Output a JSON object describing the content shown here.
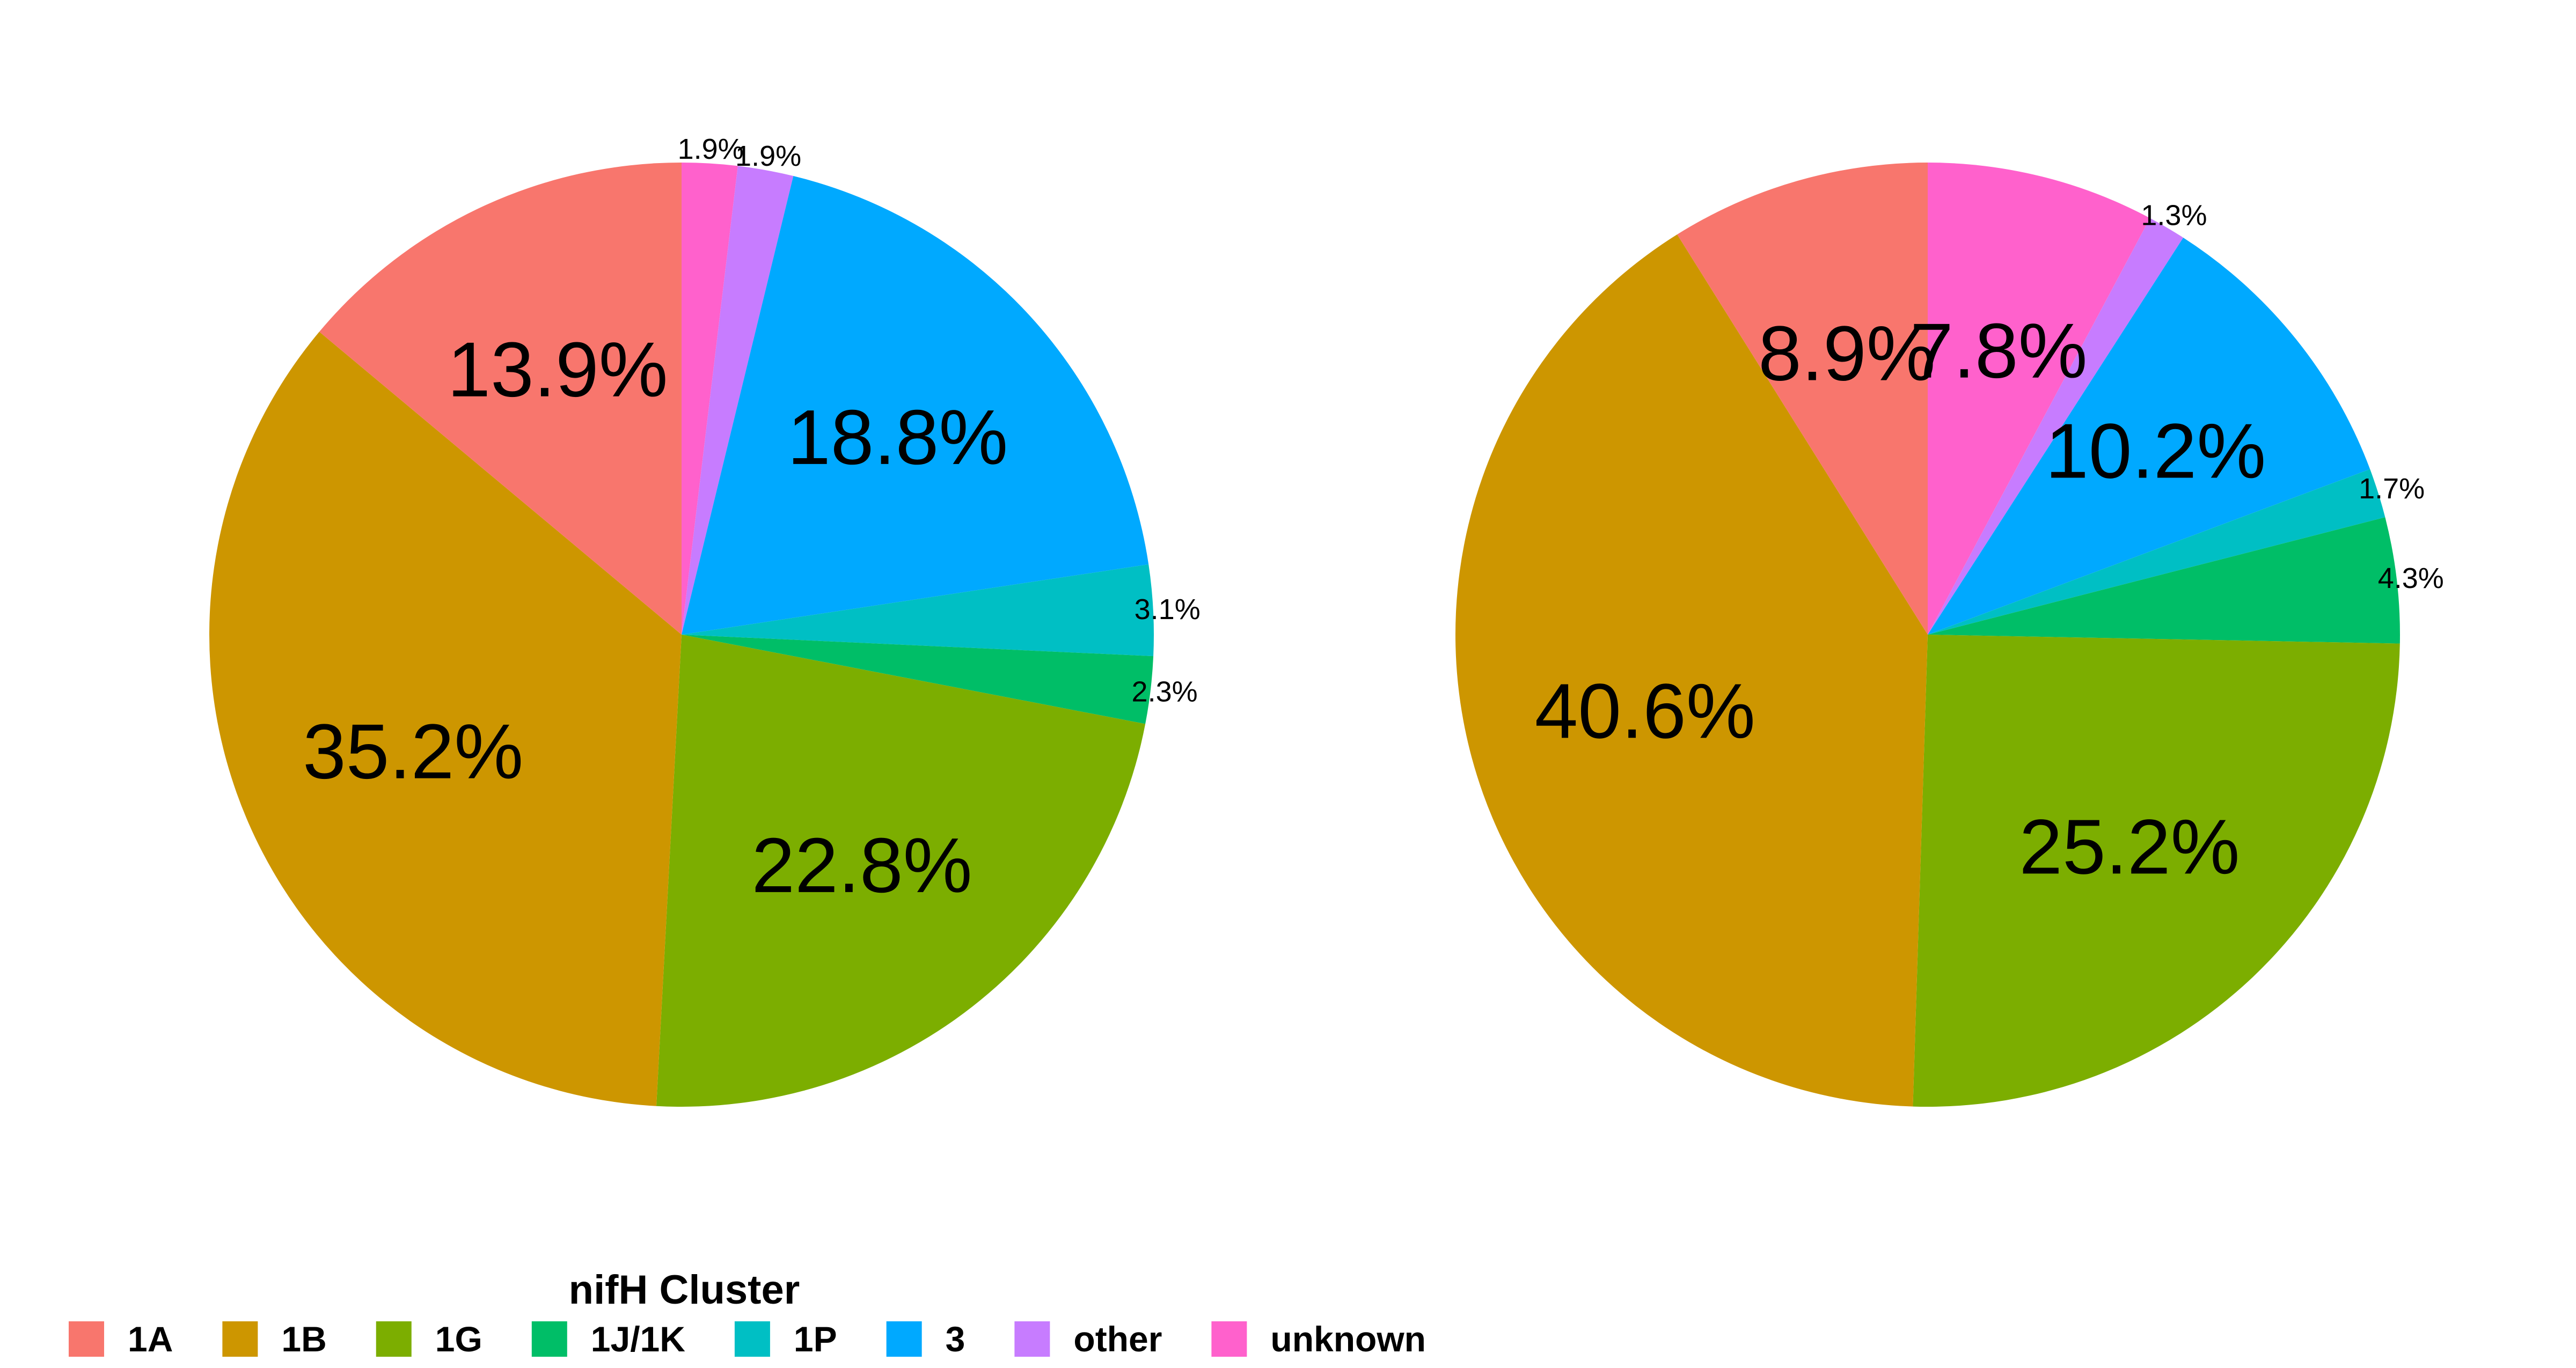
{
  "chart_data": [
    {
      "type": "pie",
      "slices": [
        {
          "category": "1A",
          "value": 13.9,
          "label": "13.9%"
        },
        {
          "category": "1B",
          "value": 35.2,
          "label": "35.2%"
        },
        {
          "category": "1G",
          "value": 22.8,
          "label": "22.8%"
        },
        {
          "category": "1J/1K",
          "value": 2.3,
          "label": "2.3%"
        },
        {
          "category": "1P",
          "value": 3.1,
          "label": "3.1%"
        },
        {
          "category": "3",
          "value": 18.8,
          "label": "18.8%"
        },
        {
          "category": "other",
          "value": 1.9,
          "label": "1.9%"
        },
        {
          "category": "unknown",
          "value": 1.9,
          "label": "1.9%"
        }
      ]
    },
    {
      "type": "pie",
      "slices": [
        {
          "category": "1A",
          "value": 8.9,
          "label": "8.9%"
        },
        {
          "category": "1B",
          "value": 40.6,
          "label": "40.6%"
        },
        {
          "category": "1G",
          "value": 25.2,
          "label": "25.2%"
        },
        {
          "category": "1J/1K",
          "value": 4.3,
          "label": "4.3%"
        },
        {
          "category": "1P",
          "value": 1.7,
          "label": "1.7%"
        },
        {
          "category": "3",
          "value": 10.2,
          "label": "10.2%"
        },
        {
          "category": "other",
          "value": 1.3,
          "label": "1.3%"
        },
        {
          "category": "unknown",
          "value": 7.8,
          "label": "7.8%"
        }
      ]
    }
  ],
  "legend": {
    "title": "nifH Cluster",
    "placement": "bottom",
    "items": [
      {
        "label": "1A",
        "color": "#F8766D"
      },
      {
        "label": "1B",
        "color": "#CD9600"
      },
      {
        "label": "1G",
        "color": "#7CAE00"
      },
      {
        "label": "1J/1K",
        "color": "#00BE67"
      },
      {
        "label": "1P",
        "color": "#00BFC4"
      },
      {
        "label": "3",
        "color": "#00A9FF"
      },
      {
        "label": "other",
        "color": "#C77CFF"
      },
      {
        "label": "unknown",
        "color": "#FF61CC"
      }
    ]
  }
}
